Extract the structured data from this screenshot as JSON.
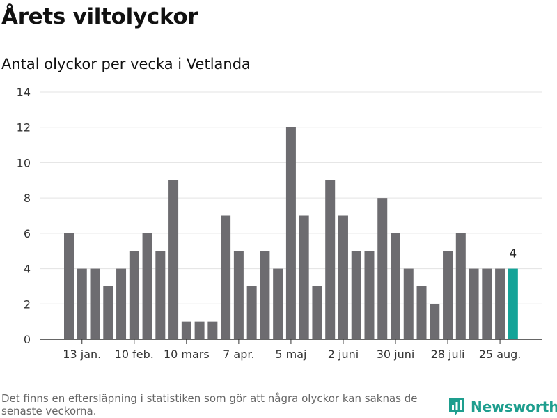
{
  "title": "Årets viltolyckor",
  "subtitle": "Antal olyckor per vecka i Vetlanda",
  "note": "Det finns en eftersläpning i statistiken som gör att några olyckor kan saknas de senaste veckorna.",
  "brand": {
    "name": "Newsworthy",
    "color": "#1e9e8e",
    "icon": "bar-chart-speech-bubble-icon"
  },
  "colors": {
    "bar": "#6d6c70",
    "highlight": "#14a398",
    "grid": "#e3e3e3",
    "axis": "#333333"
  },
  "chart_data": {
    "type": "bar",
    "title": "Årets viltolyckor",
    "subtitle": "Antal olyckor per vecka i Vetlanda",
    "xlabel": "",
    "ylabel": "",
    "ylim": [
      0,
      14
    ],
    "yticks": [
      0,
      2,
      4,
      6,
      8,
      10,
      12,
      14
    ],
    "grid": true,
    "values": [
      6,
      4,
      4,
      3,
      4,
      5,
      6,
      5,
      9,
      1,
      1,
      1,
      7,
      5,
      3,
      5,
      4,
      12,
      7,
      3,
      9,
      7,
      5,
      5,
      8,
      6,
      4,
      3,
      2,
      5,
      6,
      4,
      4,
      4,
      4
    ],
    "xtick_labels": [
      {
        "index": 1,
        "label": "13 jan."
      },
      {
        "index": 5,
        "label": "10 feb."
      },
      {
        "index": 9,
        "label": "10 mars"
      },
      {
        "index": 13,
        "label": "7 apr."
      },
      {
        "index": 17,
        "label": "5 maj"
      },
      {
        "index": 21,
        "label": "2 juni"
      },
      {
        "index": 25,
        "label": "30 juni"
      },
      {
        "index": 29,
        "label": "28 juli"
      },
      {
        "index": 33,
        "label": "25 aug."
      }
    ],
    "highlight_index": 34,
    "highlight_label": "4"
  }
}
